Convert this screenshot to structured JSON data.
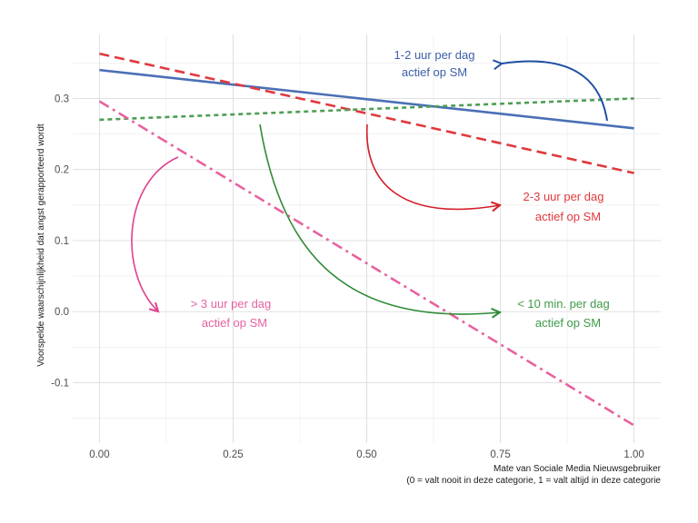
{
  "chart_data": {
    "type": "line",
    "title": "",
    "xlabel": "Mate van Sociale Media Nieuwsgebruiker",
    "xlabel_note": "(0 = valt nooit in deze categorie, 1 = valt altijd in deze categorie",
    "ylabel": "Voorspelde waarschijnlijkheid dat angst gerapporteerd wordt",
    "xlim": [
      -0.05,
      1.05
    ],
    "ylim": [
      -0.185,
      0.39
    ],
    "x_ticks": [
      0.0,
      0.25,
      0.5,
      0.75,
      1.0
    ],
    "x_tick_labels": [
      "0.00",
      "0.25",
      "0.50",
      "0.75",
      "1.00"
    ],
    "y_ticks": [
      -0.1,
      0.0,
      0.1,
      0.2,
      0.3
    ],
    "y_tick_labels": [
      "-0.1",
      "0.0",
      "0.1",
      "0.2",
      "0.3"
    ],
    "grid": true,
    "legend": "none",
    "series": [
      {
        "id": "s-1-2",
        "x": [
          0,
          1
        ],
        "y": [
          0.34,
          0.258
        ],
        "color": "#4a6fb5",
        "style": "solid"
      },
      {
        "id": "s-2-3",
        "x": [
          0,
          1
        ],
        "y": [
          0.363,
          0.195
        ],
        "color": "#e0393e",
        "style": "dashed"
      },
      {
        "id": "s-lt10",
        "x": [
          0,
          1
        ],
        "y": [
          0.27,
          0.3
        ],
        "color": "#4e9e54",
        "style": "dotted"
      },
      {
        "id": "s-gt3",
        "x": [
          0,
          1
        ],
        "y": [
          0.296,
          -0.16
        ],
        "color": "#e8619f",
        "style": "dashdot"
      }
    ],
    "annotations": [
      {
        "id": "a-1-2",
        "line1": "1-2 uur per dag",
        "line2": "actief op SM",
        "color": "#3b5fa8"
      },
      {
        "id": "a-2-3",
        "line1": "2-3 uur per dag",
        "line2": "actief op SM",
        "color": "#e0393e"
      },
      {
        "id": "a-lt10",
        "line1": "< 10 min. per dag",
        "line2": "actief op SM",
        "color": "#3f9a48"
      },
      {
        "id": "a-gt3",
        "line1": "> 3 uur per dag",
        "line2": "actief op SM",
        "color": "#e8619f"
      }
    ]
  }
}
